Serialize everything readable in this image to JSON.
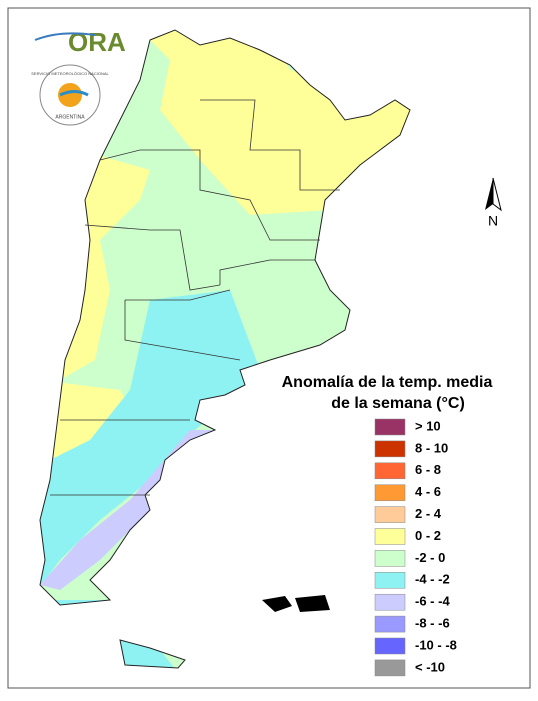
{
  "logo": {
    "name": "ORA",
    "ring_text": "SERVICIO METEOROLÓGICO NACIONAL",
    "country": "ARGENTINA"
  },
  "north_label": "N",
  "legend": {
    "title": [
      "Anomalía de la temp. media",
      "de la semana (°C)"
    ],
    "items": [
      {
        "label": "> 10",
        "color": "#993366"
      },
      {
        "label": "8 - 10",
        "color": "#cc3300"
      },
      {
        "label": "6 - 8",
        "color": "#ff6633"
      },
      {
        "label": "4 - 6",
        "color": "#ff9933"
      },
      {
        "label": "2 - 4",
        "color": "#ffcc99"
      },
      {
        "label": "0 - 2",
        "color": "#ffff99"
      },
      {
        "label": "-2 - 0",
        "color": "#ccffcc"
      },
      {
        "label": "-4 - -2",
        "color": "#8ef2f2"
      },
      {
        "label": "-6 - -4",
        "color": "#ccccff"
      },
      {
        "label": "-8 - -6",
        "color": "#9999ff"
      },
      {
        "label": "-10 - -8",
        "color": "#6666ff"
      },
      {
        "label": "< -10",
        "color": "#999999"
      }
    ]
  }
}
